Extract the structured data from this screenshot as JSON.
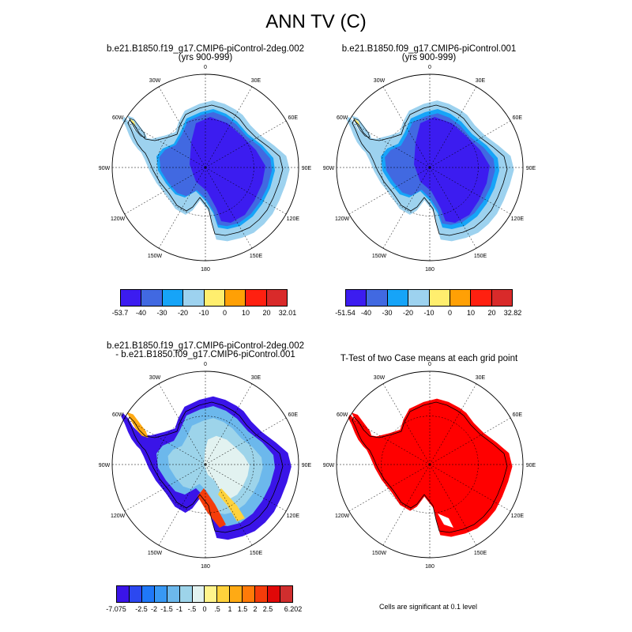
{
  "title": "ANN TV (C)",
  "colors": {
    "land_outline": "#000000",
    "grid": "#000000",
    "significant": "#ff0000"
  },
  "longitude_labels": [
    "0",
    "30E",
    "60E",
    "90E",
    "120E",
    "150E",
    "180",
    "150W",
    "120W",
    "90W",
    "60W",
    "30W"
  ],
  "panels": [
    {
      "id": "p1",
      "title_line1": "b.e21.B1850.f19_g17.CMIP6-piControl-2deg.002",
      "title_line2": "(yrs 900-999)",
      "type": "field",
      "colorbar": {
        "colors": [
          "#3c1cf0",
          "#4169e1",
          "#16a4f8",
          "#9dd2ef",
          "#ffee6e",
          "#ffa005",
          "#ff2010",
          "#d92a2a"
        ],
        "labels": [
          "-53.7",
          "-40",
          "-30",
          "-20",
          "-10",
          "0",
          "10",
          "20",
          "32.01"
        ]
      }
    },
    {
      "id": "p2",
      "title_line1": "b.e21.B1850.f09_g17.CMIP6-piControl.001",
      "title_line2": "(yrs 900-999)",
      "type": "field",
      "colorbar": {
        "colors": [
          "#3c1cf0",
          "#4169e1",
          "#16a4f8",
          "#9dd2ef",
          "#ffee6e",
          "#ffa005",
          "#ff2010",
          "#d92a2a"
        ],
        "labels": [
          "-51.54",
          "-40",
          "-30",
          "-20",
          "-10",
          "0",
          "10",
          "20",
          "32.82"
        ]
      }
    },
    {
      "id": "p3",
      "title_line1": "b.e21.B1850.f19_g17.CMIP6-piControl-2deg.002",
      "title_line2": "- b.e21.B1850.f09_g17.CMIP6-piControl.001",
      "type": "difference",
      "colorbar": {
        "colors": [
          "#3a14e8",
          "#2c48f0",
          "#1f78f8",
          "#3898f4",
          "#6cb8ec",
          "#9dd4ea",
          "#e2f2f0",
          "#fff48c",
          "#ffd23c",
          "#ffaa14",
          "#ff7a08",
          "#f53c0a",
          "#e00808",
          "#d02e2e"
        ],
        "labels": [
          "-7.075",
          "",
          "-2.5",
          "-2",
          "-1.5",
          "-1",
          "-.5",
          "0",
          ".5",
          "1",
          "1.5",
          "2",
          "2.5",
          "",
          "6.202"
        ]
      }
    },
    {
      "id": "p4",
      "title_line1": "T-Test of two Case means at each grid point",
      "title_line2": "",
      "type": "ttest",
      "note": "Cells are significant at 0.1 level"
    }
  ]
}
